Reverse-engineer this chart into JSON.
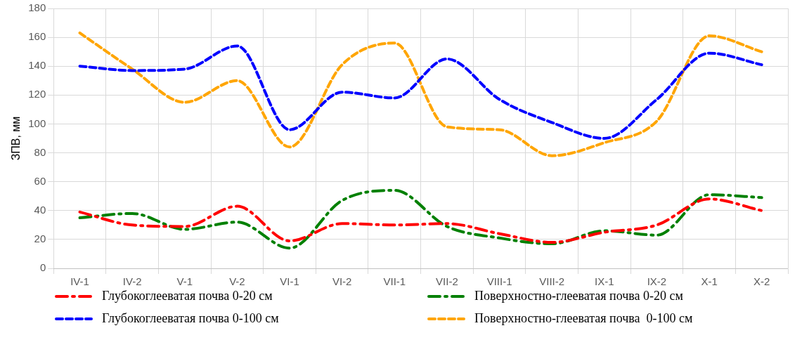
{
  "chart_data": {
    "type": "line",
    "ylabel": "ЗПВ, мм",
    "categories": [
      "IV-1",
      "IV-2",
      "V-1",
      "V-2",
      "VI-1",
      "VI-2",
      "VII-1",
      "VII-2",
      "VIII-1",
      "VIII-2",
      "IX-1",
      "IX-2",
      "X-1",
      "X-2"
    ],
    "series": [
      {
        "name": "Глубокоглееватая почва 0-20 см",
        "color": "#ff0000",
        "line_style": "dotted",
        "values": [
          39,
          30,
          29,
          43,
          19,
          31,
          30,
          31,
          24,
          18,
          25,
          30,
          48,
          40
        ]
      },
      {
        "name": "Поверхностно-глееватая почва 0-20 см",
        "color": "#008000",
        "line_style": "dotted",
        "values": [
          35,
          38,
          27,
          32,
          14,
          47,
          54,
          29,
          21,
          17,
          26,
          23,
          51,
          49
        ]
      },
      {
        "name": "Глубокоглееватая почва 0-100 см",
        "color": "#0000ff",
        "line_style": "dashed",
        "values": [
          140,
          137,
          138,
          154,
          96,
          122,
          118,
          145,
          117,
          101,
          90,
          117,
          149,
          141
        ]
      },
      {
        "name": "Поверхностно-глееватая почва  0-100 см",
        "color": "#ffa500",
        "line_style": "dashed",
        "values": [
          163,
          138,
          115,
          130,
          84,
          141,
          156,
          98,
          96,
          78,
          87,
          102,
          161,
          150
        ]
      }
    ],
    "ylim": [
      0,
      180
    ],
    "yticks": [
      0,
      20,
      40,
      60,
      80,
      100,
      120,
      140,
      160,
      180
    ],
    "grid": true,
    "legend": "bottom",
    "marker": "none"
  }
}
